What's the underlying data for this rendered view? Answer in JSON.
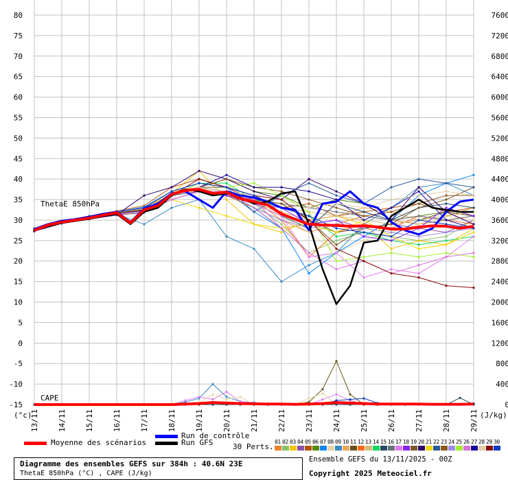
{
  "chart_data": {
    "type": "line",
    "title": "Diagramme des ensembles GEFS sur 384h : 40.6N 23E",
    "subtitle": "ThetaE 850hPa (°C) , CAPE (J/kg)",
    "run_info": "Ensemble GEFS du 13/11/2025 - 00Z",
    "copyright": "Copyright 2025 Meteociel.fr",
    "ylabel_left": "(°c)",
    "ylabel_right": "(J/kg)",
    "series_label_thetae": "ThetaE 850hPa",
    "series_label_cape": "CAPE",
    "ylim_left": [
      -15,
      80
    ],
    "ylim_right": [
      0,
      7600
    ],
    "yticks_left": [
      -15,
      -10,
      -5,
      0,
      5,
      10,
      15,
      20,
      25,
      30,
      35,
      40,
      45,
      50,
      55,
      60,
      65,
      70,
      75,
      80
    ],
    "yticks_right": [
      0,
      400,
      800,
      1200,
      1600,
      2000,
      2400,
      2800,
      3200,
      3600,
      4000,
      4400,
      4800,
      5200,
      5600,
      6000,
      6400,
      6800,
      7200,
      7600
    ],
    "x_hours_range": [
      0,
      384
    ],
    "x_tick_labels": [
      "13/11",
      "14/11",
      "15/11",
      "16/11",
      "17/11",
      "18/11",
      "19/11",
      "20/11",
      "21/11",
      "22/11",
      "23/11",
      "24/11",
      "25/11",
      "26/11",
      "27/11",
      "28/11",
      "29/11"
    ],
    "grid": true,
    "legend": {
      "mean": "Moyenne des scénarios",
      "control": "Run de contrôle",
      "gfs": "Run GFS",
      "perts": "30 Perts."
    },
    "colors": {
      "mean": "#ff0000",
      "control": "#0000ff",
      "gfs": "#000000",
      "grid": "#c0c0c0"
    },
    "hours_12h": [
      0,
      12,
      24,
      36,
      48,
      60,
      72,
      84,
      96,
      108,
      120,
      132,
      144,
      156,
      168,
      180,
      192,
      204,
      216,
      228,
      240,
      252,
      264,
      276,
      288,
      300,
      312,
      324,
      336,
      348,
      360,
      372,
      384
    ],
    "mean": [
      27.5,
      28.8,
      29.5,
      30.0,
      30.5,
      31.2,
      31.8,
      29.3,
      32.5,
      33.5,
      36.3,
      37.2,
      37.5,
      36.5,
      36.8,
      35.2,
      34.5,
      33.7,
      31.5,
      30.2,
      29.0,
      28.8,
      28.7,
      28.5,
      28.6,
      28.3,
      27.8,
      27.8,
      28.3,
      28.6,
      28.5,
      28.0,
      28.5
    ],
    "gfs": [
      27.5,
      28.5,
      29.3,
      29.8,
      30.3,
      31.0,
      31.5,
      29.0,
      32.0,
      33.0,
      36.0,
      37.5,
      37.0,
      36.0,
      36.5,
      35.5,
      34.0,
      34.5,
      36.5,
      37.0,
      29.0,
      18.0,
      9.5,
      14.0,
      24.5,
      25.0,
      31.0,
      33.0,
      35.0,
      33.0,
      32.5,
      32.0,
      32.0
    ],
    "control": [
      27.8,
      29.0,
      29.8,
      30.2,
      30.8,
      31.5,
      32.0,
      29.5,
      32.8,
      34.0,
      36.5,
      37.0,
      35.0,
      33.0,
      37.0,
      36.0,
      35.5,
      34.5,
      33.0,
      32.5,
      27.5,
      34.0,
      34.5,
      37.0,
      34.0,
      33.0,
      29.5,
      27.5,
      26.5,
      28.0,
      32.0,
      34.5,
      35.0
    ],
    "perturbations": {
      "hours_24h": [
        0,
        24,
        48,
        72,
        96,
        120,
        144,
        168,
        192,
        216,
        240,
        264,
        288,
        312,
        336,
        360,
        384
      ],
      "members": [
        {
          "id": "01",
          "color": "#e8822e",
          "values": [
            27.8,
            29.5,
            30.8,
            32,
            33,
            37,
            38,
            37,
            35,
            30,
            27,
            29,
            31,
            30,
            29,
            30,
            31
          ]
        },
        {
          "id": "02",
          "color": "#86c46a",
          "values": [
            27.5,
            29.3,
            30.5,
            31.5,
            32,
            36,
            38,
            37,
            34,
            29,
            22,
            25,
            27,
            26,
            25,
            26,
            30
          ]
        },
        {
          "id": "03",
          "color": "#f2c500",
          "values": [
            27.6,
            29.6,
            30.6,
            31.8,
            32.8,
            36.5,
            42,
            35,
            29,
            27,
            30,
            31,
            29,
            23,
            25,
            24,
            28
          ]
        },
        {
          "id": "04",
          "color": "#8e4fa8",
          "values": [
            27.3,
            29.2,
            30.2,
            31.2,
            31.8,
            35,
            37,
            36,
            33,
            28,
            29,
            30,
            28,
            29,
            28,
            27,
            30
          ]
        },
        {
          "id": "05",
          "color": "#b0520c",
          "values": [
            28,
            29.8,
            31,
            32.2,
            33.5,
            38,
            40,
            38,
            36,
            33,
            34,
            31,
            32,
            33,
            34,
            32,
            33
          ]
        },
        {
          "id": "06",
          "color": "#5a8a10",
          "values": [
            27.4,
            29.4,
            30.4,
            31.6,
            32.4,
            36,
            38,
            40,
            37,
            36,
            33,
            35,
            34,
            30,
            31,
            32,
            31
          ]
        },
        {
          "id": "07",
          "color": "#0a84ff",
          "values": [
            27.9,
            29.7,
            30.9,
            32,
            33.2,
            37,
            39,
            38,
            32,
            28,
            17,
            22,
            26,
            30,
            36,
            39,
            41
          ]
        },
        {
          "id": "08",
          "color": "#e6d3a8",
          "values": [
            27.5,
            29.5,
            30.5,
            31.5,
            32,
            35,
            37,
            37,
            35,
            31,
            27,
            22,
            25,
            27,
            29,
            31,
            30
          ]
        },
        {
          "id": "09",
          "color": "#3a8ac0",
          "values": [
            27.7,
            29.3,
            30.3,
            31.4,
            29,
            33,
            35,
            26,
            23,
            15,
            19,
            22,
            29,
            33,
            38,
            39,
            36
          ]
        },
        {
          "id": "10",
          "color": "#e8a85a",
          "values": [
            27.6,
            29.6,
            30.7,
            31.9,
            33,
            36,
            38,
            37,
            34,
            32,
            30,
            31,
            33,
            32,
            30,
            31,
            33
          ]
        },
        {
          "id": "11",
          "color": "#6a521c",
          "values": [
            27.3,
            29.5,
            30.5,
            31.5,
            32.5,
            36,
            38,
            37,
            35,
            34,
            30,
            24,
            28,
            29,
            30,
            32,
            31
          ]
        },
        {
          "id": "12",
          "color": "#ff6a1c",
          "values": [
            27.8,
            29.6,
            30.6,
            31.7,
            32.2,
            35,
            37,
            36,
            33,
            30,
            21,
            27,
            29,
            28,
            31,
            30,
            29
          ]
        },
        {
          "id": "13",
          "color": "#d2bc78",
          "values": [
            27.5,
            29.4,
            30.3,
            31.4,
            32,
            36,
            38,
            36,
            34,
            33,
            32,
            31,
            30,
            29,
            30,
            31,
            32
          ]
        },
        {
          "id": "14",
          "color": "#10d860",
          "values": [
            27.6,
            29.5,
            30.5,
            31.7,
            32.5,
            36,
            39,
            39,
            35,
            33,
            31,
            26,
            27,
            25,
            24,
            25,
            26
          ]
        },
        {
          "id": "15",
          "color": "#254a60",
          "values": [
            27.4,
            29.3,
            30.4,
            31.5,
            32.4,
            36,
            37,
            36,
            34,
            31,
            28,
            34,
            32,
            30,
            33,
            34,
            33
          ]
        },
        {
          "id": "16",
          "color": "#687078",
          "values": [
            27.5,
            29.5,
            30.5,
            31.6,
            32.5,
            36,
            37,
            36,
            35,
            34,
            33,
            32,
            31,
            30,
            31,
            30,
            31
          ]
        },
        {
          "id": "17",
          "color": "#e07cf0",
          "values": [
            27.7,
            29.6,
            30.8,
            31.8,
            32.7,
            36,
            39,
            38,
            34,
            31,
            21,
            22,
            16,
            18,
            17,
            21,
            26
          ]
        },
        {
          "id": "18",
          "color": "#8a22f0",
          "values": [
            27.4,
            29.4,
            30.4,
            31.5,
            32.2,
            35,
            37,
            36,
            34,
            33,
            29,
            30,
            26,
            25,
            28,
            33,
            31
          ]
        },
        {
          "id": "19",
          "color": "#7a5a2a",
          "values": [
            27.6,
            29.5,
            30.5,
            31.6,
            32.5,
            36,
            38,
            38,
            35,
            34,
            30,
            27,
            28,
            29,
            33,
            35,
            38
          ]
        },
        {
          "id": "20",
          "color": "#30006a",
          "values": [
            27.3,
            29.2,
            30.3,
            31.3,
            36,
            38,
            42,
            40,
            37,
            35,
            40,
            37,
            34,
            30,
            38,
            32,
            29
          ]
        },
        {
          "id": "21",
          "color": "#f0d800",
          "values": [
            27.5,
            29.5,
            30.5,
            31.6,
            32.2,
            35,
            33,
            31,
            29,
            28,
            29,
            27,
            30,
            26,
            23,
            24,
            27
          ]
        },
        {
          "id": "22",
          "color": "#2a5a9a",
          "values": [
            27.8,
            29.6,
            30.6,
            31.8,
            32.6,
            36,
            38,
            37,
            32,
            36,
            39,
            36,
            34,
            38,
            40,
            39,
            38
          ]
        },
        {
          "id": "23",
          "color": "#8a5a20",
          "values": [
            27.6,
            29.5,
            30.5,
            31.6,
            32.4,
            36,
            38,
            40,
            38,
            37,
            35,
            33,
            31,
            32,
            34,
            36,
            36
          ]
        },
        {
          "id": "24",
          "color": "#a08ae8",
          "values": [
            27.5,
            29.4,
            30.4,
            31.5,
            32.2,
            36,
            38,
            37,
            33,
            30,
            28,
            29,
            28,
            27,
            26,
            27,
            28
          ]
        },
        {
          "id": "25",
          "color": "#a4f030",
          "values": [
            27.6,
            29.6,
            30.6,
            31.7,
            32.6,
            36,
            39,
            38,
            39,
            36,
            32,
            20,
            21,
            22,
            21,
            22,
            21
          ]
        },
        {
          "id": "26",
          "color": "#d872d8",
          "values": [
            27.5,
            29.5,
            30.5,
            31.5,
            32.3,
            35,
            37,
            37,
            35,
            28,
            22,
            18,
            20,
            17,
            19,
            21,
            22
          ]
        },
        {
          "id": "27",
          "color": "#1a0a9a",
          "values": [
            27.4,
            29.4,
            30.4,
            31.5,
            32.4,
            36,
            38,
            41,
            38,
            38,
            37,
            35,
            30,
            33,
            37,
            30,
            28
          ]
        },
        {
          "id": "28",
          "color": "#e2cca8",
          "values": [
            27.7,
            29.5,
            30.5,
            31.6,
            32.5,
            36,
            38,
            37,
            36,
            35,
            33,
            34,
            33,
            35,
            36,
            37,
            36
          ]
        },
        {
          "id": "29",
          "color": "#880a0a",
          "values": [
            27.5,
            29.5,
            30.6,
            31.7,
            32.5,
            36,
            40,
            38,
            36,
            35,
            30,
            23,
            20,
            17,
            16,
            14,
            13.5
          ]
        },
        {
          "id": "30",
          "color": "#0a3ac0",
          "values": [
            27.8,
            29.7,
            30.8,
            32,
            33,
            37,
            39,
            38,
            36,
            33,
            31,
            28,
            27,
            26,
            30,
            29,
            28
          ]
        }
      ]
    },
    "cape": {
      "hours_12h": [
        0,
        12,
        24,
        36,
        48,
        60,
        72,
        84,
        96,
        108,
        120,
        132,
        144,
        156,
        168,
        180,
        192,
        204,
        216,
        228,
        240,
        252,
        264,
        276,
        288,
        300,
        312,
        324,
        336,
        348,
        360,
        372,
        384
      ],
      "mean": [
        0,
        0,
        0,
        0,
        0,
        0,
        0,
        0,
        0,
        0,
        0,
        10,
        20,
        40,
        30,
        20,
        15,
        10,
        10,
        5,
        10,
        20,
        40,
        30,
        20,
        10,
        10,
        10,
        10,
        5,
        5,
        5,
        10
      ],
      "members_peak": [
        {
          "id": "09",
          "color": "#3a8ac0",
          "values": [
            0,
            0,
            0,
            0,
            0,
            0,
            0,
            0,
            0,
            0,
            0,
            50,
            120,
            400,
            150,
            60,
            40,
            20,
            10,
            0,
            0,
            0,
            0,
            0,
            0,
            0,
            0,
            0,
            0,
            0,
            0,
            0,
            0
          ]
        },
        {
          "id": "11",
          "color": "#6a521c",
          "values": [
            0,
            0,
            0,
            0,
            0,
            0,
            0,
            0,
            0,
            0,
            0,
            0,
            0,
            0,
            0,
            0,
            0,
            0,
            0,
            0,
            50,
            300,
            850,
            200,
            0,
            0,
            0,
            0,
            0,
            0,
            0,
            0,
            0
          ]
        },
        {
          "id": "17",
          "color": "#e07cf0",
          "values": [
            0,
            0,
            0,
            0,
            0,
            0,
            0,
            0,
            0,
            0,
            0,
            80,
            150,
            100,
            250,
            60,
            30,
            0,
            0,
            0,
            0,
            100,
            200,
            80,
            0,
            0,
            0,
            0,
            0,
            0,
            0,
            0,
            0
          ]
        },
        {
          "id": "08",
          "color": "#e6d3a8",
          "values": [
            0,
            0,
            0,
            0,
            0,
            0,
            0,
            0,
            0,
            0,
            0,
            0,
            40,
            200,
            100,
            150,
            0,
            0,
            0,
            0,
            120,
            220,
            0,
            0,
            0,
            0,
            0,
            0,
            0,
            0,
            0,
            0,
            0
          ]
        },
        {
          "id": "30",
          "color": "#0a3ac0",
          "values": [
            0,
            0,
            0,
            0,
            0,
            0,
            0,
            0,
            0,
            0,
            0,
            0,
            0,
            0,
            0,
            0,
            0,
            0,
            0,
            0,
            0,
            0,
            80,
            100,
            120,
            30,
            0,
            0,
            0,
            0,
            0,
            0,
            20
          ]
        },
        {
          "id": "15",
          "color": "#254a60",
          "values": [
            0,
            0,
            0,
            0,
            0,
            0,
            0,
            0,
            0,
            0,
            0,
            0,
            0,
            0,
            0,
            0,
            0,
            0,
            0,
            0,
            0,
            0,
            0,
            0,
            0,
            0,
            0,
            0,
            0,
            0,
            0,
            130,
            0
          ]
        }
      ]
    }
  }
}
